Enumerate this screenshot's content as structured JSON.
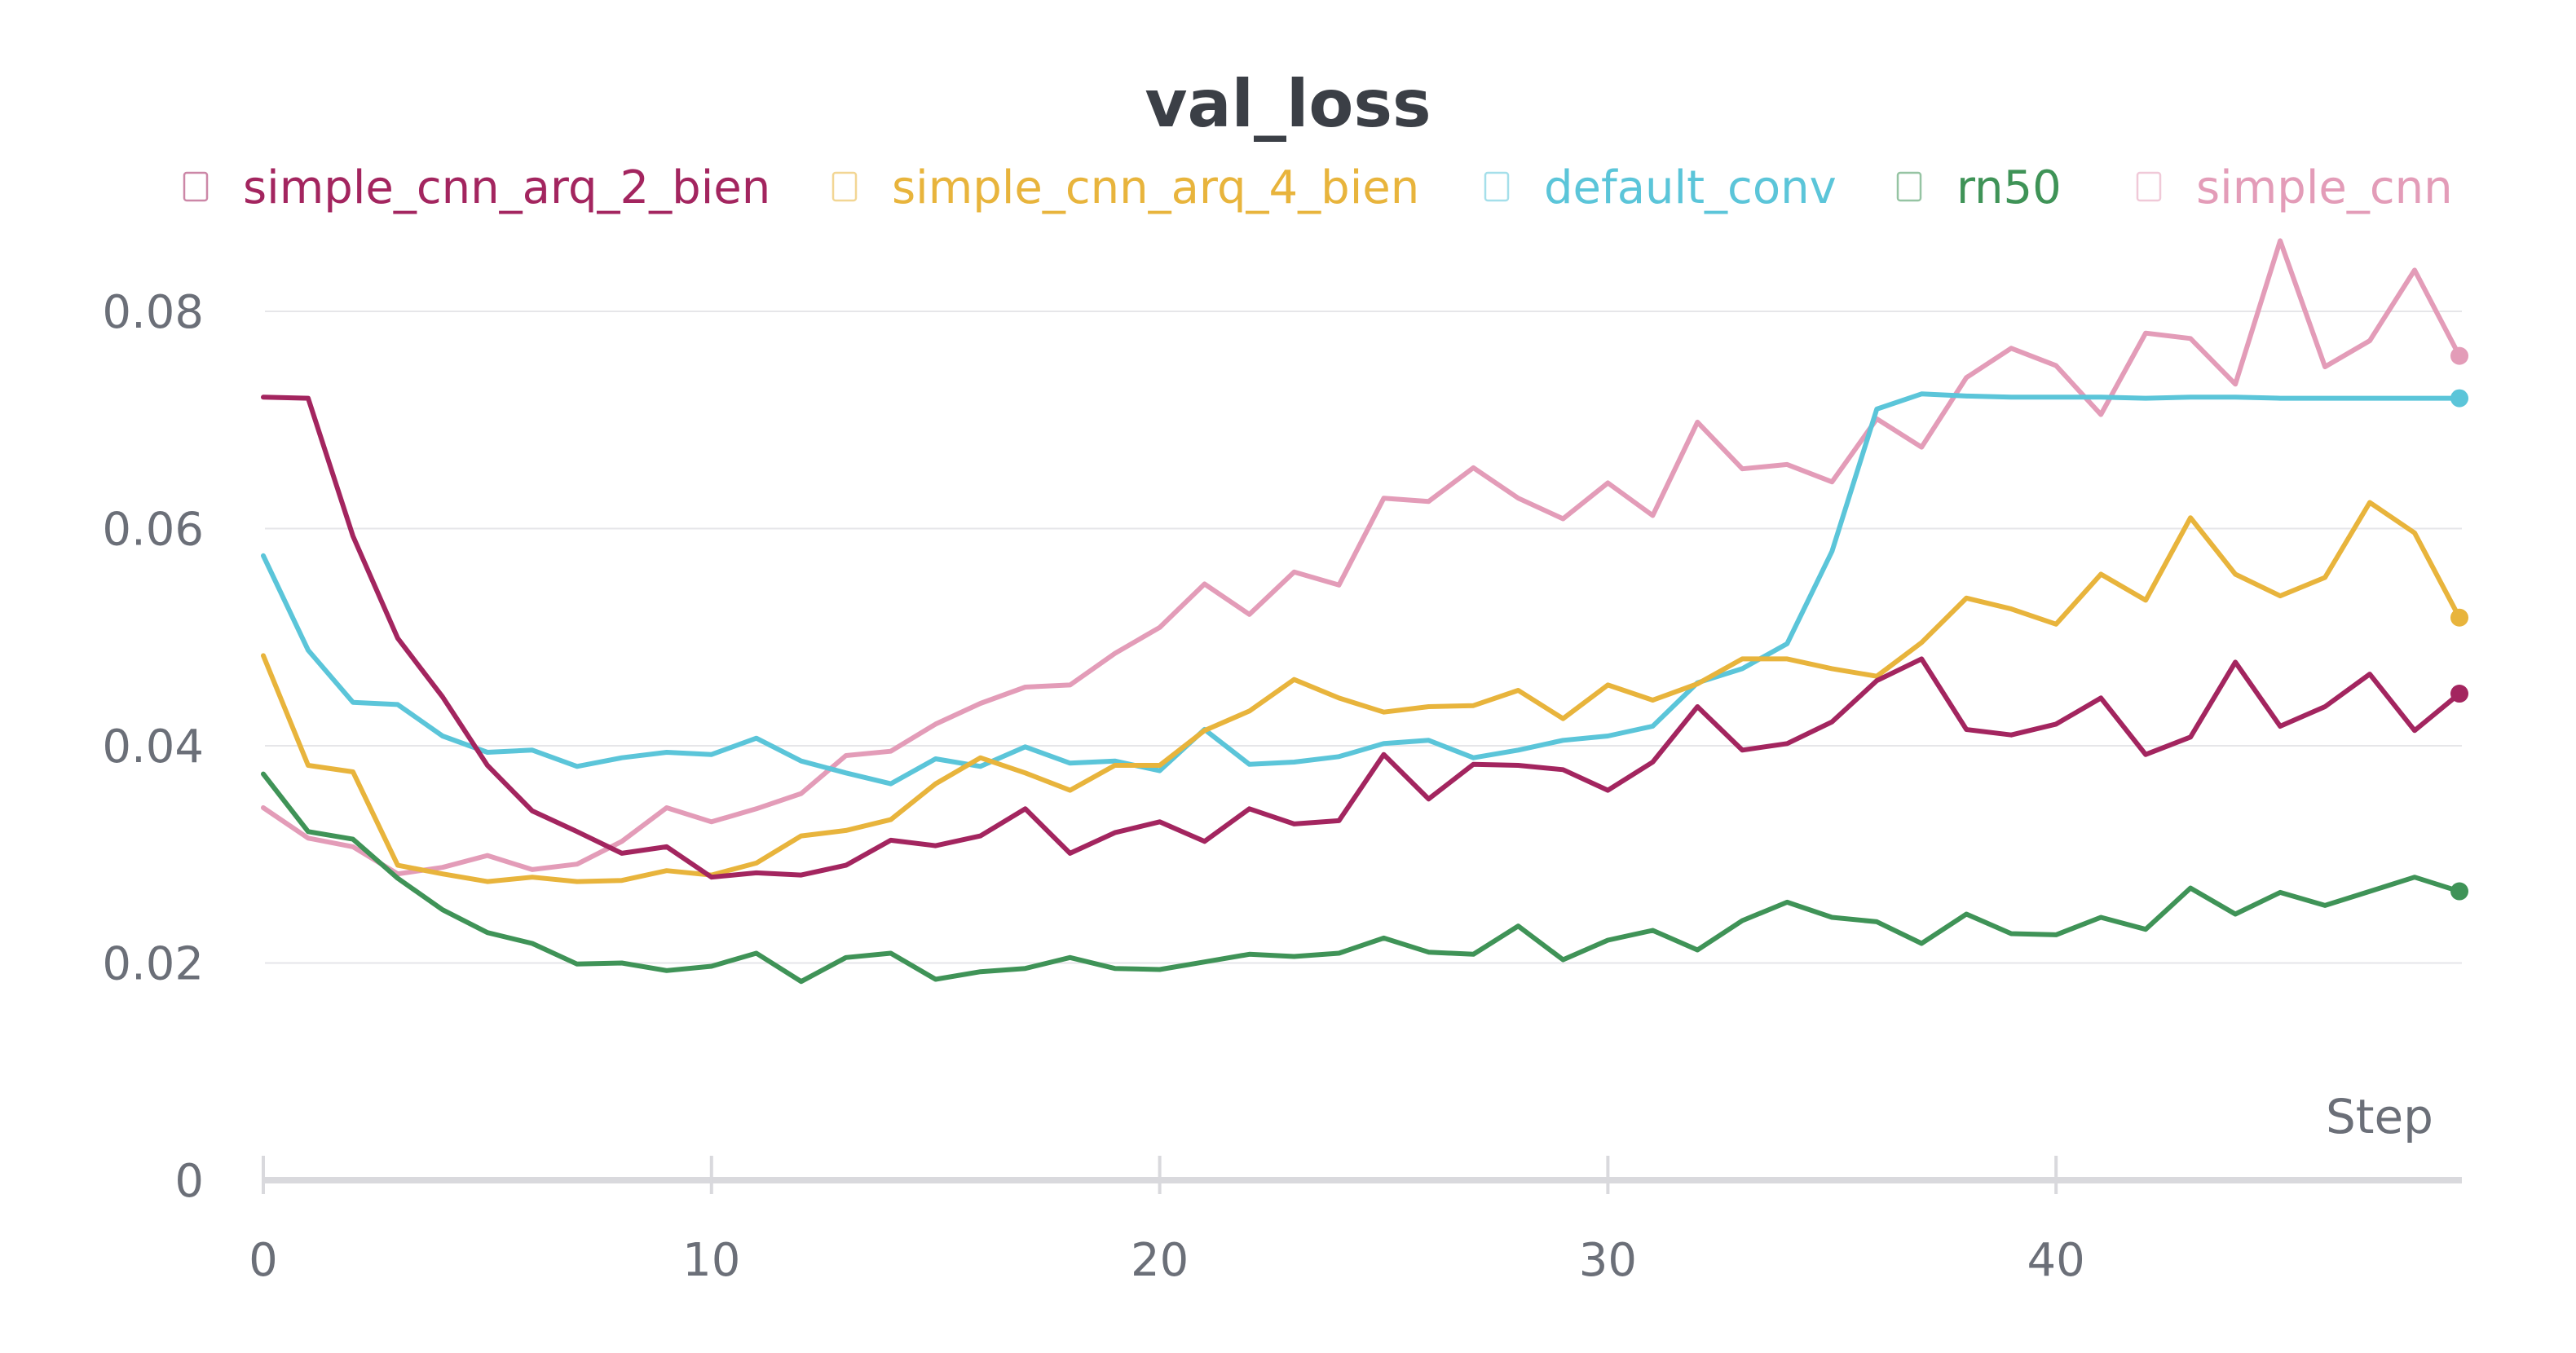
{
  "chart_data": {
    "type": "line",
    "title": "val_loss",
    "xlabel": "Step",
    "ylabel": "",
    "xlim": [
      0,
      49
    ],
    "ylim": [
      0,
      0.08
    ],
    "x_ticks": [
      0,
      10,
      20,
      30,
      40
    ],
    "y_ticks": [
      0,
      0.02,
      0.04,
      0.06,
      0.08
    ],
    "y_tick_labels": [
      "0",
      "0.02",
      "0.04",
      "0.06",
      "0.08"
    ],
    "grid": true,
    "legend_position": "top",
    "x": [
      0,
      1,
      2,
      3,
      4,
      5,
      6,
      7,
      8,
      9,
      10,
      11,
      12,
      13,
      14,
      15,
      16,
      17,
      18,
      19,
      20,
      21,
      22,
      23,
      24,
      25,
      26,
      27,
      28,
      29,
      30,
      31,
      32,
      33,
      34,
      35,
      36,
      37,
      38,
      39,
      40,
      41,
      42,
      43,
      44,
      45,
      46,
      47,
      48,
      49
    ],
    "series": [
      {
        "name": "simple_cnn",
        "color": "#e39cb8",
        "values": [
          0.0343,
          0.0315,
          0.0307,
          0.0282,
          0.0288,
          0.0299,
          0.0286,
          0.0291,
          0.0312,
          0.0343,
          0.033,
          0.0342,
          0.0356,
          0.0391,
          0.0395,
          0.042,
          0.0439,
          0.0454,
          0.0456,
          0.0485,
          0.0509,
          0.0549,
          0.0521,
          0.056,
          0.0548,
          0.0628,
          0.0625,
          0.0656,
          0.0628,
          0.0609,
          0.0642,
          0.0612,
          0.0698,
          0.0655,
          0.0659,
          0.0643,
          0.0701,
          0.0675,
          0.0739,
          0.0766,
          0.075,
          0.0705,
          0.078,
          0.0775,
          0.0733,
          0.0865,
          0.0749,
          0.0773,
          0.0838,
          0.0759
        ]
      },
      {
        "name": "default_conv",
        "color": "#5bc5d9",
        "values": [
          0.0575,
          0.0488,
          0.044,
          0.0438,
          0.0409,
          0.0394,
          0.0396,
          0.0381,
          0.0389,
          0.0394,
          0.0392,
          0.0407,
          0.0386,
          0.0375,
          0.0365,
          0.0388,
          0.0381,
          0.0399,
          0.0384,
          0.0386,
          0.0377,
          0.0415,
          0.0383,
          0.0385,
          0.039,
          0.0402,
          0.0405,
          0.0389,
          0.0396,
          0.0405,
          0.0409,
          0.0418,
          0.0458,
          0.0471,
          0.0494,
          0.0579,
          0.071,
          0.0724,
          0.0722,
          0.0721,
          0.0721,
          0.0721,
          0.072,
          0.0721,
          0.0721,
          0.072,
          0.072,
          0.072,
          0.072,
          0.072
        ]
      },
      {
        "name": "simple_cnn_arq_4_bien",
        "color": "#e8b43c",
        "values": [
          0.0483,
          0.0382,
          0.0376,
          0.029,
          0.0282,
          0.0275,
          0.0279,
          0.0275,
          0.0276,
          0.0285,
          0.0281,
          0.0292,
          0.0317,
          0.0322,
          0.0332,
          0.0365,
          0.0389,
          0.0375,
          0.0359,
          0.0382,
          0.0382,
          0.0414,
          0.0432,
          0.0461,
          0.0444,
          0.0431,
          0.0436,
          0.0437,
          0.0451,
          0.0425,
          0.0456,
          0.0442,
          0.0457,
          0.048,
          0.048,
          0.0471,
          0.0464,
          0.0495,
          0.0536,
          0.0526,
          0.0512,
          0.0558,
          0.0534,
          0.061,
          0.0558,
          0.0538,
          0.0555,
          0.0624,
          0.0596,
          0.0518
        ]
      },
      {
        "name": "simple_cnn_arq_2_bien",
        "color": "#a3255f",
        "values": [
          0.0721,
          0.072,
          0.0593,
          0.0499,
          0.0445,
          0.0382,
          0.034,
          0.0321,
          0.0301,
          0.0307,
          0.0279,
          0.0283,
          0.0281,
          0.029,
          0.0313,
          0.0308,
          0.0317,
          0.0342,
          0.0301,
          0.032,
          0.033,
          0.0312,
          0.0342,
          0.0328,
          0.0331,
          0.0392,
          0.0351,
          0.0383,
          0.0382,
          0.0378,
          0.0359,
          0.0385,
          0.0436,
          0.0396,
          0.0402,
          0.0422,
          0.046,
          0.048,
          0.0415,
          0.041,
          0.042,
          0.0444,
          0.0392,
          0.0408,
          0.0477,
          0.0418,
          0.0436,
          0.0466,
          0.0414,
          0.0448
        ]
      },
      {
        "name": "rn50",
        "color": "#3f9357",
        "values": [
          0.0374,
          0.0321,
          0.0314,
          0.0278,
          0.0249,
          0.0228,
          0.0218,
          0.0199,
          0.02,
          0.0193,
          0.0197,
          0.0209,
          0.0183,
          0.0205,
          0.0209,
          0.0185,
          0.0192,
          0.0195,
          0.0205,
          0.0195,
          0.0194,
          0.0201,
          0.0208,
          0.0206,
          0.0209,
          0.0223,
          0.021,
          0.0208,
          0.0234,
          0.0203,
          0.0221,
          0.023,
          0.0212,
          0.0239,
          0.0256,
          0.0242,
          0.0238,
          0.0218,
          0.0245,
          0.0227,
          0.0226,
          0.0242,
          0.0231,
          0.0269,
          0.0245,
          0.0265,
          0.0253,
          0.0266,
          0.0279,
          0.0266
        ]
      }
    ],
    "legend": [
      {
        "name": "simple_cnn_arq_2_bien",
        "color": "#a3255f"
      },
      {
        "name": "simple_cnn_arq_4_bien",
        "color": "#e8b43c"
      },
      {
        "name": "default_conv",
        "color": "#5bc5d9"
      },
      {
        "name": "rn50",
        "color": "#3f9357"
      },
      {
        "name": "simple_cnn",
        "color": "#e39cb8"
      }
    ]
  }
}
